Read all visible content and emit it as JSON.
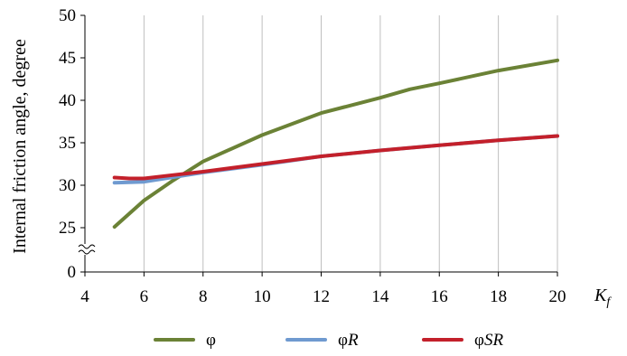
{
  "chart_data": {
    "type": "line",
    "title": "",
    "ylabel": "Internal friction angle, degree",
    "xlabel": {
      "base": "K",
      "sub": "f"
    },
    "xlim": [
      4,
      20
    ],
    "ylim": [
      0,
      50
    ],
    "y_axis_break": {
      "from": 0,
      "to": 25
    },
    "x_ticks": [
      4,
      6,
      8,
      10,
      12,
      14,
      16,
      18,
      20
    ],
    "y_ticks": [
      0,
      25,
      30,
      35,
      40,
      45,
      50
    ],
    "grid": "vertical",
    "legend_position": "bottom",
    "series": [
      {
        "name": "φ",
        "legend": {
          "base": "φ",
          "italic": ""
        },
        "color": "#6b8236",
        "x": [
          5,
          6,
          7,
          8,
          10,
          12,
          14,
          15,
          16,
          18,
          20
        ],
        "y": [
          25.1,
          28.2,
          30.6,
          32.8,
          35.9,
          38.5,
          40.3,
          41.3,
          42.0,
          43.5,
          44.7
        ]
      },
      {
        "name": "φR",
        "legend": {
          "base": "φ",
          "italic": "R"
        },
        "color": "#6f9ad0",
        "x": [
          5,
          6,
          8,
          10,
          12,
          14,
          16,
          18,
          20
        ],
        "y": [
          30.3,
          30.4,
          31.5,
          32.4,
          33.4,
          34.1,
          34.7,
          35.3,
          35.8
        ]
      },
      {
        "name": "φSR",
        "legend": {
          "base": "φ",
          "italic": "SR"
        },
        "color": "#c3202b",
        "x": [
          5,
          5.5,
          6,
          7,
          8,
          10,
          12,
          14,
          16,
          18,
          20
        ],
        "y": [
          30.9,
          30.8,
          30.8,
          31.2,
          31.6,
          32.5,
          33.4,
          34.1,
          34.7,
          35.3,
          35.8
        ]
      }
    ]
  }
}
